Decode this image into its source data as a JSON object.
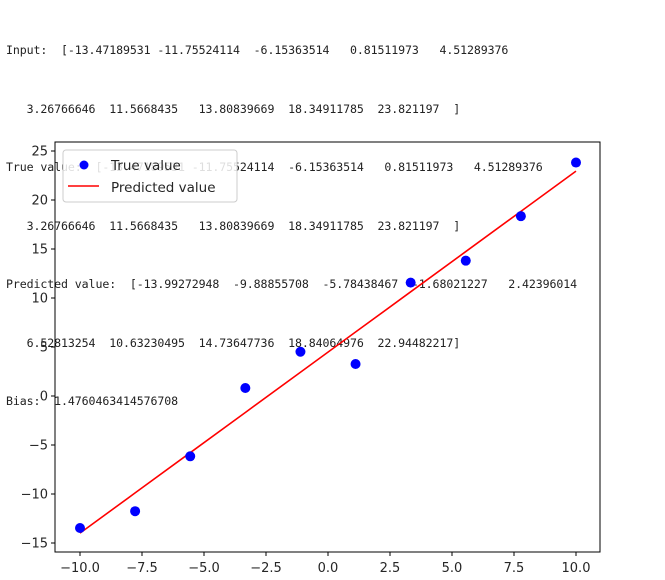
{
  "console": {
    "lines": [
      "Input:  [-13.47189531 -11.75524114  -6.15363514   0.81511973   4.51289376",
      "   3.26766646  11.5668435   13.80839669  18.34911785  23.821197  ]",
      "True value:  [-13.47189531 -11.75524114  -6.15363514   0.81511973   4.51289376",
      "   3.26766646  11.5668435   13.80839669  18.34911785  23.821197  ]",
      "Predicted value:  [-13.99272948  -9.88855708  -5.78438467  -1.68021227   2.42396014",
      "   6.52813254  10.63230495  14.73647736  18.84064976  22.94482217]",
      "Bias:  1.4760463414576708"
    ]
  },
  "colors": {
    "true_value_marker": "#0000ff",
    "predicted_line": "#ff0000",
    "axis": "#000000",
    "text": "#262626"
  },
  "chart_data": {
    "type": "scatter",
    "title": "",
    "xlabel": "",
    "ylabel": "",
    "xlim": [
      -11.0,
      11.0
    ],
    "ylim": [
      -16.0,
      25.9
    ],
    "grid": false,
    "legend_position": "upper left",
    "x": [
      -10.0,
      -7.7778,
      -5.5556,
      -3.3333,
      -1.1111,
      1.1111,
      3.3333,
      5.5556,
      7.7778,
      10.0
    ],
    "series": [
      {
        "name": "True value",
        "kind": "scatter",
        "color": "#0000ff",
        "values": [
          -13.47189531,
          -11.75524114,
          -6.15363514,
          0.81511973,
          4.51289376,
          3.26766646,
          11.5668435,
          13.80839669,
          18.34911785,
          23.821197
        ]
      },
      {
        "name": "Predicted value",
        "kind": "line",
        "color": "#ff0000",
        "values": [
          -13.99272948,
          -9.88855708,
          -5.78438467,
          -1.68021227,
          2.42396014,
          6.52813254,
          10.63230495,
          14.73647736,
          18.84064976,
          22.94482217
        ]
      }
    ],
    "xticks": [
      -10.0,
      -7.5,
      -5.0,
      -2.5,
      0.0,
      2.5,
      5.0,
      7.5,
      10.0
    ],
    "xtick_labels": [
      "−10.0",
      "−7.5",
      "−5.0",
      "−2.5",
      "0.0",
      "2.5",
      "5.0",
      "7.5",
      "10.0"
    ],
    "yticks": [
      25,
      20,
      15,
      10,
      5,
      0,
      -5,
      -10,
      -15
    ],
    "ytick_labels": [
      "25",
      "20",
      "15",
      "10",
      "5",
      "0",
      "−5",
      "−10",
      "−15"
    ],
    "legend": [
      "True value",
      "Predicted value"
    ]
  }
}
